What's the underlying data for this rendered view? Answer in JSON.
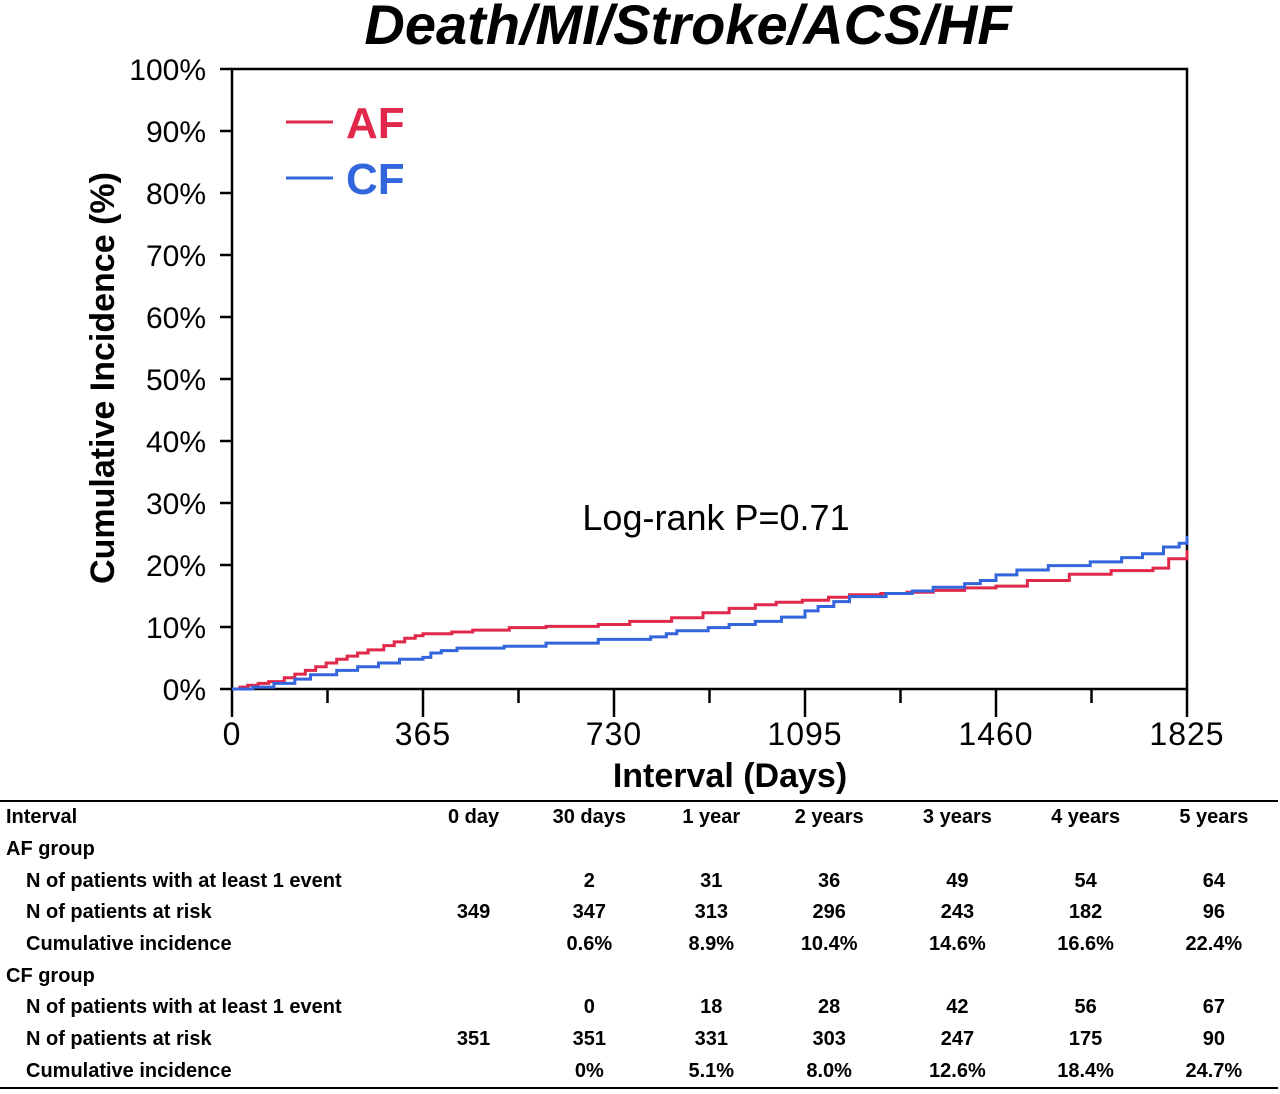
{
  "chart_data": {
    "type": "line",
    "title": "Death/MI/Stroke/ACS/HF",
    "xlabel": "Interval (Days)",
    "ylabel": "Cumulative Incidence (%)",
    "xlim": [
      0,
      1825
    ],
    "ylim": [
      0,
      100
    ],
    "x_ticks": [
      0,
      365,
      730,
      1095,
      1460,
      1825
    ],
    "x_ticks_labels": [
      "0",
      "365",
      "730",
      "1095",
      "1460",
      "1825"
    ],
    "x_minor_ticks": [
      182.5,
      547.5,
      912.5,
      1277.5,
      1642.5
    ],
    "y_ticks": [
      0,
      10,
      20,
      30,
      40,
      50,
      60,
      70,
      80,
      90,
      100
    ],
    "y_tick_labels": [
      "0%",
      "10%",
      "20%",
      "30%",
      "40%",
      "50%",
      "60%",
      "70%",
      "80%",
      "90%",
      "100%"
    ],
    "legend_position": "top-left",
    "annotation": "Log-rank P=0.71",
    "series": [
      {
        "name": "AF",
        "color": "#e0294a",
        "points": [
          [
            0,
            0
          ],
          [
            15,
            0.3
          ],
          [
            30,
            0.6
          ],
          [
            50,
            0.9
          ],
          [
            70,
            1.2
          ],
          [
            100,
            1.8
          ],
          [
            120,
            2.4
          ],
          [
            140,
            3.0
          ],
          [
            160,
            3.6
          ],
          [
            180,
            4.2
          ],
          [
            200,
            4.8
          ],
          [
            220,
            5.3
          ],
          [
            240,
            5.8
          ],
          [
            260,
            6.3
          ],
          [
            290,
            7.0
          ],
          [
            310,
            7.6
          ],
          [
            330,
            8.2
          ],
          [
            350,
            8.6
          ],
          [
            365,
            8.9
          ],
          [
            420,
            9.2
          ],
          [
            460,
            9.5
          ],
          [
            530,
            9.9
          ],
          [
            600,
            10.1
          ],
          [
            700,
            10.4
          ],
          [
            760,
            10.9
          ],
          [
            840,
            11.5
          ],
          [
            900,
            12.3
          ],
          [
            950,
            13.0
          ],
          [
            1000,
            13.6
          ],
          [
            1040,
            14.0
          ],
          [
            1090,
            14.3
          ],
          [
            1140,
            14.8
          ],
          [
            1180,
            15.2
          ],
          [
            1240,
            15.4
          ],
          [
            1290,
            15.6
          ],
          [
            1340,
            15.9
          ],
          [
            1400,
            16.3
          ],
          [
            1460,
            16.6
          ],
          [
            1520,
            17.5
          ],
          [
            1600,
            18.5
          ],
          [
            1680,
            19.1
          ],
          [
            1760,
            19.5
          ],
          [
            1790,
            21.0
          ],
          [
            1825,
            22.4
          ]
        ]
      },
      {
        "name": "CF",
        "color": "#3366dd",
        "points": [
          [
            0,
            0
          ],
          [
            40,
            0.3
          ],
          [
            80,
            0.9
          ],
          [
            120,
            1.6
          ],
          [
            150,
            2.3
          ],
          [
            200,
            3.0
          ],
          [
            240,
            3.6
          ],
          [
            280,
            4.2
          ],
          [
            320,
            4.8
          ],
          [
            365,
            5.1
          ],
          [
            380,
            5.8
          ],
          [
            400,
            6.2
          ],
          [
            430,
            6.6
          ],
          [
            520,
            6.9
          ],
          [
            600,
            7.4
          ],
          [
            700,
            8.0
          ],
          [
            800,
            8.4
          ],
          [
            830,
            8.9
          ],
          [
            850,
            9.4
          ],
          [
            910,
            9.9
          ],
          [
            950,
            10.4
          ],
          [
            1000,
            10.9
          ],
          [
            1050,
            11.6
          ],
          [
            1095,
            12.6
          ],
          [
            1120,
            13.3
          ],
          [
            1150,
            14.1
          ],
          [
            1180,
            14.9
          ],
          [
            1250,
            15.4
          ],
          [
            1300,
            15.8
          ],
          [
            1340,
            16.4
          ],
          [
            1400,
            17.0
          ],
          [
            1430,
            17.5
          ],
          [
            1460,
            18.4
          ],
          [
            1500,
            19.2
          ],
          [
            1560,
            19.9
          ],
          [
            1640,
            20.5
          ],
          [
            1700,
            21.2
          ],
          [
            1740,
            21.8
          ],
          [
            1780,
            22.9
          ],
          [
            1810,
            23.5
          ],
          [
            1825,
            24.7
          ]
        ]
      }
    ]
  },
  "table": {
    "header": [
      "Interval",
      "0 day",
      "30 days",
      "1 year",
      "2 years",
      "3 years",
      "4 years",
      "5 years"
    ],
    "groups": [
      {
        "name": "AF group",
        "rows": [
          {
            "label": "N of patients with at least 1 event",
            "values": [
              "",
              "2",
              "31",
              "36",
              "49",
              "54",
              "64"
            ]
          },
          {
            "label": "N of patients at risk",
            "values": [
              "349",
              "347",
              "313",
              "296",
              "243",
              "182",
              "96"
            ]
          },
          {
            "label": "Cumulative incidence",
            "values": [
              "",
              "0.6%",
              "8.9%",
              "10.4%",
              "14.6%",
              "16.6%",
              "22.4%"
            ]
          }
        ]
      },
      {
        "name": "CF group",
        "rows": [
          {
            "label": "N of patients with at least 1 event",
            "values": [
              "",
              "0",
              "18",
              "28",
              "42",
              "56",
              "67"
            ]
          },
          {
            "label": "N of patients at risk",
            "values": [
              "351",
              "351",
              "331",
              "303",
              "247",
              "175",
              "90"
            ]
          },
          {
            "label": "Cumulative incidence",
            "values": [
              "",
              "0%",
              "5.1%",
              "8.0%",
              "12.6%",
              "18.4%",
              "24.7%"
            ]
          }
        ]
      }
    ]
  }
}
